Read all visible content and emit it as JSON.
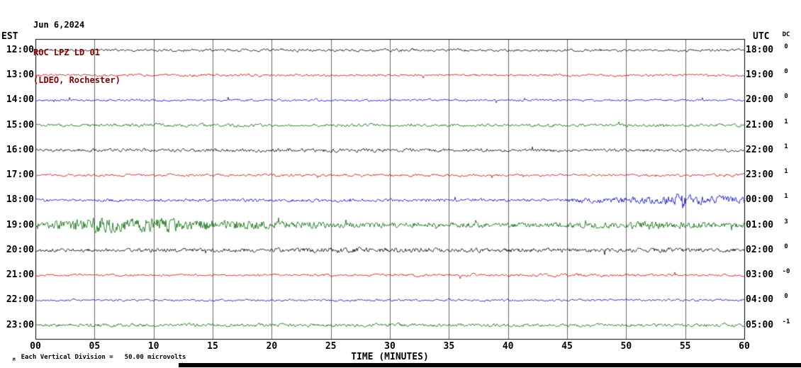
{
  "header": {
    "date": "Jun 6,2024",
    "station": "ROC LPZ LD 01",
    "location": "(LDEO, Rochester)"
  },
  "axis_labels": {
    "left": "EST",
    "right": "UTC",
    "dc": "DC"
  },
  "footer": {
    "mark": "M",
    "label": "Each Vertical Division =",
    "value": "50.00 microvolts"
  },
  "colors": {
    "trace_black": "#000000",
    "trace_red": "#cc0000",
    "trace_blue": "#0000cc",
    "trace_green": "#006600",
    "title_maroon": "#800000",
    "grid": "#666666",
    "border": "#000000"
  },
  "chart_data": {
    "type": "line",
    "subtype": "seismogram_helicorder",
    "title": "ROC LPZ LD 01",
    "date": "Jun 6,2024",
    "location": "(LDEO, Rochester)",
    "xlabel": "TIME (MINUTES)",
    "x_range": [
      0,
      60
    ],
    "x_ticks": [
      "00",
      "05",
      "10",
      "15",
      "20",
      "25",
      "30",
      "35",
      "40",
      "45",
      "50",
      "55",
      "60"
    ],
    "left_axis": "EST",
    "right_axis": "UTC",
    "dc_column": "DC",
    "vertical_division": "50.00 microvolts",
    "grid": true,
    "rows": [
      {
        "est": "12:00",
        "utc": "18:00",
        "dc": "0",
        "color": "#000000",
        "smooth": 0.55,
        "amplitude_envelope": [
          [
            0,
            1.7
          ],
          [
            60,
            1.7
          ]
        ]
      },
      {
        "est": "13:00",
        "utc": "19:00",
        "dc": "0",
        "color": "#cc0000",
        "smooth": 0.55,
        "amplitude_envelope": [
          [
            0,
            1.7
          ],
          [
            60,
            1.7
          ]
        ]
      },
      {
        "est": "14:00",
        "utc": "20:00",
        "dc": "0",
        "color": "#0000cc",
        "smooth": 0.55,
        "amplitude_envelope": [
          [
            0,
            1.4
          ],
          [
            60,
            1.4
          ]
        ]
      },
      {
        "est": "15:00",
        "utc": "21:00",
        "dc": "1",
        "color": "#006600",
        "smooth": 0.5,
        "amplitude_envelope": [
          [
            0,
            1.8
          ],
          [
            60,
            1.8
          ]
        ]
      },
      {
        "est": "16:00",
        "utc": "22:00",
        "dc": "1",
        "color": "#000000",
        "smooth": 0.5,
        "amplitude_envelope": [
          [
            0,
            1.9
          ],
          [
            25,
            2.3
          ],
          [
            40,
            2.0
          ],
          [
            60,
            1.9
          ]
        ]
      },
      {
        "est": "17:00",
        "utc": "23:00",
        "dc": "1",
        "color": "#cc0000",
        "smooth": 0.55,
        "amplitude_envelope": [
          [
            0,
            1.7
          ],
          [
            60,
            1.7
          ]
        ]
      },
      {
        "est": "18:00",
        "utc": "00:00",
        "dc": "1",
        "color": "#0000cc",
        "smooth": 0.4,
        "amplitude_envelope": [
          [
            0,
            1.6
          ],
          [
            44,
            1.8
          ],
          [
            47,
            3.2
          ],
          [
            50,
            3.8
          ],
          [
            53,
            4.2
          ],
          [
            54.5,
            7.5
          ],
          [
            56,
            5
          ],
          [
            58,
            4.8
          ],
          [
            60,
            4.4
          ]
        ]
      },
      {
        "est": "19:00",
        "utc": "01:00",
        "dc": "3",
        "color": "#006600",
        "smooth": 0.3,
        "amplitude_envelope": [
          [
            0,
            2.4
          ],
          [
            1,
            3
          ],
          [
            2,
            4.5
          ],
          [
            4,
            7.5
          ],
          [
            5.5,
            9
          ],
          [
            7,
            7
          ],
          [
            8.5,
            6
          ],
          [
            9.5,
            8.5
          ],
          [
            11,
            7
          ],
          [
            12.5,
            5.5
          ],
          [
            14,
            6
          ],
          [
            16,
            5
          ],
          [
            18,
            4.5
          ],
          [
            20,
            3.6
          ],
          [
            24,
            3
          ],
          [
            28,
            2.8
          ],
          [
            34,
            2.5
          ],
          [
            40,
            2.4
          ],
          [
            46,
            2.6
          ],
          [
            50,
            3
          ],
          [
            52,
            3.4
          ],
          [
            54,
            3
          ],
          [
            57,
            2.8
          ],
          [
            60,
            2.6
          ]
        ]
      },
      {
        "est": "20:00",
        "utc": "02:00",
        "dc": "0",
        "color": "#000000",
        "smooth": 0.45,
        "amplitude_envelope": [
          [
            0,
            2.2
          ],
          [
            8,
            2.2
          ],
          [
            12,
            2.6
          ],
          [
            16,
            2.4
          ],
          [
            20,
            2.8
          ],
          [
            24,
            3
          ],
          [
            27,
            3.2
          ],
          [
            30,
            3
          ],
          [
            34,
            2.8
          ],
          [
            38,
            2.5
          ],
          [
            44,
            2.3
          ],
          [
            50,
            2.4
          ],
          [
            55,
            2.6
          ],
          [
            60,
            2.4
          ]
        ]
      },
      {
        "est": "21:00",
        "utc": "03:00",
        "dc": "-0",
        "color": "#cc0000",
        "smooth": 0.55,
        "amplitude_envelope": [
          [
            0,
            1.6
          ],
          [
            35,
            1.6
          ],
          [
            37,
            2.4
          ],
          [
            39,
            1.7
          ],
          [
            60,
            1.6
          ]
        ]
      },
      {
        "est": "22:00",
        "utc": "04:00",
        "dc": "0",
        "color": "#0000cc",
        "smooth": 0.55,
        "amplitude_envelope": [
          [
            0,
            1.4
          ],
          [
            24,
            1.6
          ],
          [
            27,
            1.9
          ],
          [
            30,
            1.6
          ],
          [
            60,
            1.5
          ]
        ]
      },
      {
        "est": "23:00",
        "utc": "05:00",
        "dc": "-1",
        "color": "#006600",
        "smooth": 0.5,
        "amplitude_envelope": [
          [
            0,
            2.0
          ],
          [
            60,
            2.0
          ]
        ]
      }
    ],
    "events": [
      {
        "row_est": "19:00",
        "row_utc": "01:00",
        "start_min": 1,
        "peak_min": 5.5,
        "end_min": 20,
        "description": "Large-amplitude seismic event with extended coda"
      },
      {
        "row_est": "18:00",
        "row_utc": "00:00",
        "start_min": 47,
        "end_min": 60,
        "description": "Elevated activity with burst near minute 55, continuing into next hour"
      }
    ]
  }
}
